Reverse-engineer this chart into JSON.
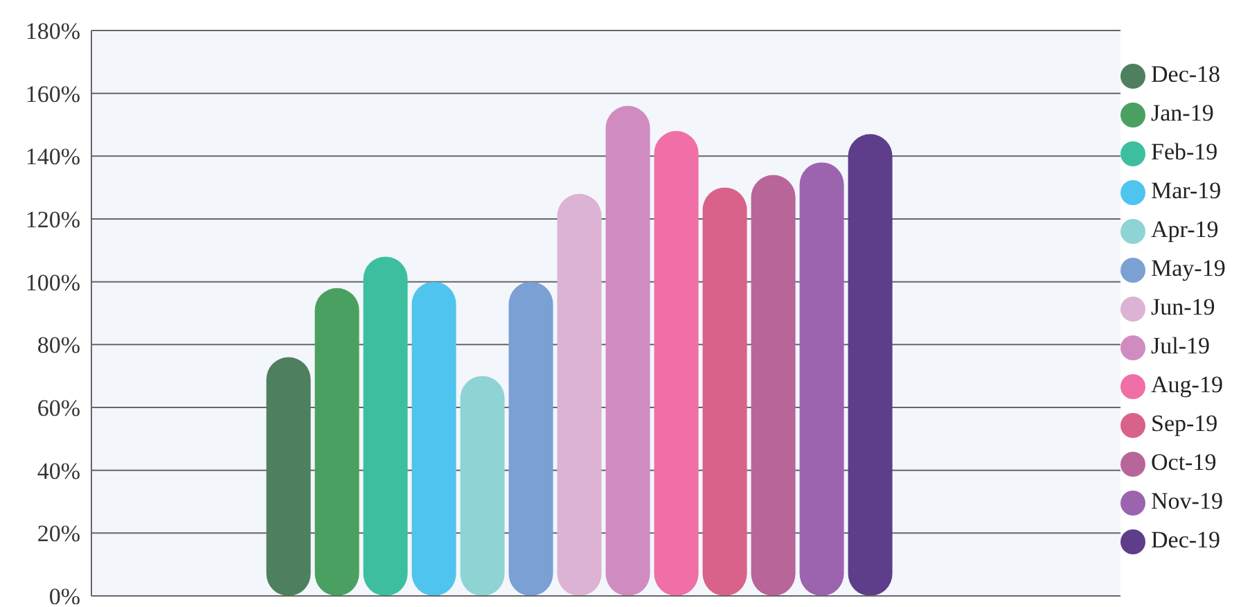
{
  "chart_data": {
    "type": "bar",
    "categories": [
      null
    ],
    "series": [
      {
        "name": "Dec-18",
        "color": "#4e7f5e",
        "values": [
          76
        ]
      },
      {
        "name": "Jan-19",
        "color": "#4aa060",
        "values": [
          98
        ]
      },
      {
        "name": "Feb-19",
        "color": "#3dbf9f",
        "values": [
          108
        ]
      },
      {
        "name": "Mar-19",
        "color": "#4fc4ee",
        "values": [
          100
        ]
      },
      {
        "name": "Apr-19",
        "color": "#8fd4d4",
        "values": [
          70
        ]
      },
      {
        "name": "May-19",
        "color": "#7aa0d4",
        "values": [
          100
        ]
      },
      {
        "name": "Jun-19",
        "color": "#dcb3d4",
        "values": [
          128
        ]
      },
      {
        "name": "Jul-19",
        "color": "#d08cc0",
        "values": [
          156
        ]
      },
      {
        "name": "Aug-19",
        "color": "#f06fa6",
        "values": [
          148
        ]
      },
      {
        "name": "Sep-19",
        "color": "#d8628a",
        "values": [
          130
        ]
      },
      {
        "name": "Oct-19",
        "color": "#b8659a",
        "values": [
          134
        ]
      },
      {
        "name": "Nov-19",
        "color": "#9c64ae",
        "values": [
          138
        ]
      },
      {
        "name": "Dec-19",
        "color": "#5e3d8a",
        "values": [
          147
        ]
      }
    ],
    "ylim": [
      0,
      180
    ],
    "yticks": [
      {
        "value": 0,
        "label": "0%"
      },
      {
        "value": 20,
        "label": "20%"
      },
      {
        "value": 40,
        "label": "40%"
      },
      {
        "value": 60,
        "label": "60%"
      },
      {
        "value": 80,
        "label": "80%"
      },
      {
        "value": 100,
        "label": "100%"
      },
      {
        "value": 120,
        "label": "120%"
      },
      {
        "value": 140,
        "label": "140%"
      },
      {
        "value": 160,
        "label": "160%"
      },
      {
        "value": 180,
        "label": "180%"
      }
    ],
    "grid": "y",
    "legend": "right",
    "tick_labels": "y"
  }
}
